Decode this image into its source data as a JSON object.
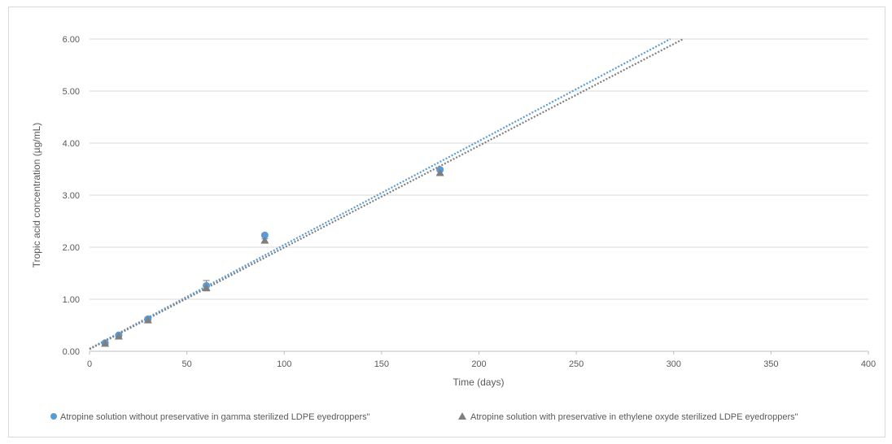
{
  "chart_data": {
    "type": "scatter",
    "title": "",
    "xlabel": "Time (days)",
    "ylabel": "Tropic acid concentration (µg/mL)",
    "xlim": [
      0,
      400
    ],
    "ylim": [
      0,
      6
    ],
    "x_ticks": [
      "0",
      "50",
      "100",
      "150",
      "200",
      "250",
      "300",
      "350",
      "400"
    ],
    "y_ticks": [
      "0.00",
      "1.00",
      "2.00",
      "3.00",
      "4.00",
      "5.00",
      "6.00"
    ],
    "grid": "horizontal",
    "legend_position": "bottom",
    "series": [
      {
        "name": "Atropine solution without preservative in gamma sterilized LDPE eyedroppers\"",
        "marker": "circle",
        "color": "#5b9bd5",
        "points": [
          {
            "x": 8,
            "y": 0.16
          },
          {
            "x": 15,
            "y": 0.31
          },
          {
            "x": 30,
            "y": 0.62
          },
          {
            "x": 60,
            "y": 1.26
          },
          {
            "x": 90,
            "y": 2.23
          },
          {
            "x": 180,
            "y": 3.49
          }
        ],
        "error": [
          0.02,
          0.02,
          0.03,
          0.1,
          0.03,
          0.03
        ],
        "trendline": {
          "style": "dotted",
          "slope": 0.01995,
          "intercept": 0.05
        }
      },
      {
        "name": "Atropine solution with preservative  in ethylene oxyde sterilized LDPE  eyedroppers\"",
        "marker": "triangle",
        "color": "#7f7f7f",
        "points": [
          {
            "x": 8,
            "y": 0.15
          },
          {
            "x": 15,
            "y": 0.29
          },
          {
            "x": 30,
            "y": 0.6
          },
          {
            "x": 60,
            "y": 1.22
          },
          {
            "x": 90,
            "y": 2.13
          },
          {
            "x": 180,
            "y": 3.43
          }
        ],
        "error": [
          0.02,
          0.02,
          0.03,
          0.04,
          0.03,
          0.03
        ],
        "trendline": {
          "style": "dotted",
          "slope": 0.01955,
          "intercept": 0.04
        }
      }
    ]
  }
}
